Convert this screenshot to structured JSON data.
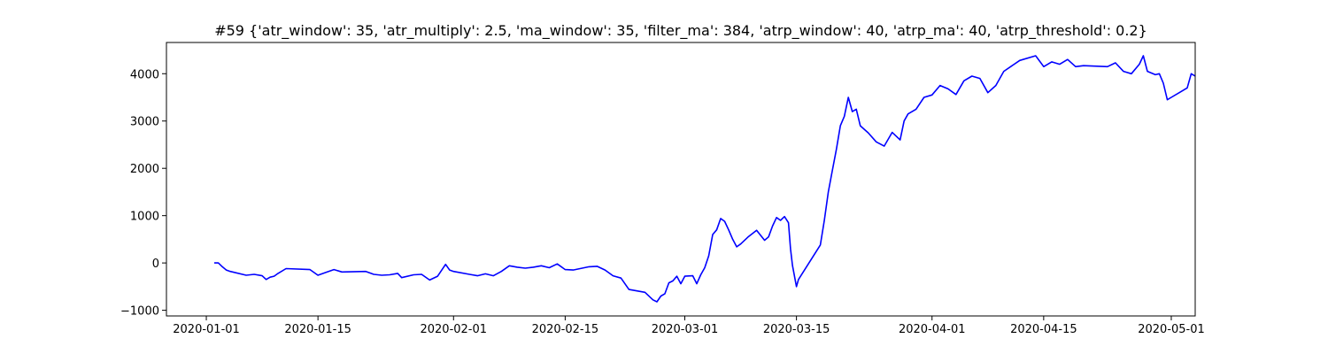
{
  "chart_data": {
    "type": "line",
    "title": "#59 {'atr_window': 35, 'atr_multiply': 2.5, 'ma_window': 35, 'filter_ma': 384, 'atrp_window': 40, 'atrp_ma': 40, 'atrp_threshold': 0.2}",
    "xlabel": "",
    "ylabel": "",
    "grid": false,
    "xlim": [
      "2019-12-27",
      "2020-05-04"
    ],
    "ylim": [
      -1120,
      4660
    ],
    "x_ticks": [
      "2020-01-01",
      "2020-01-15",
      "2020-02-01",
      "2020-02-15",
      "2020-03-01",
      "2020-03-15",
      "2020-04-01",
      "2020-04-15",
      "2020-05-01"
    ],
    "y_ticks": [
      -1000,
      0,
      1000,
      2000,
      3000,
      4000
    ],
    "y_tick_labels": [
      "−1000",
      "0",
      "1000",
      "2000",
      "3000",
      "4000"
    ],
    "series": [
      {
        "color": "#0000ff",
        "points": [
          [
            "2020-01-02",
            0
          ],
          [
            "2020-01-02 12:00",
            0
          ],
          [
            "2020-01-03",
            -80
          ],
          [
            "2020-01-03 12:00",
            -150
          ],
          [
            "2020-01-04",
            -180
          ],
          [
            "2020-01-06",
            -260
          ],
          [
            "2020-01-07",
            -240
          ],
          [
            "2020-01-08",
            -270
          ],
          [
            "2020-01-08 12:00",
            -350
          ],
          [
            "2020-01-09",
            -300
          ],
          [
            "2020-01-09 12:00",
            -280
          ],
          [
            "2020-01-10",
            -220
          ],
          [
            "2020-01-11",
            -120
          ],
          [
            "2020-01-14",
            -140
          ],
          [
            "2020-01-15",
            -260
          ],
          [
            "2020-01-16",
            -200
          ],
          [
            "2020-01-17",
            -140
          ],
          [
            "2020-01-18",
            -190
          ],
          [
            "2020-01-21",
            -180
          ],
          [
            "2020-01-22",
            -240
          ],
          [
            "2020-01-23",
            -260
          ],
          [
            "2020-01-24",
            -250
          ],
          [
            "2020-01-25",
            -220
          ],
          [
            "2020-01-25 12:00",
            -310
          ],
          [
            "2020-01-27",
            -250
          ],
          [
            "2020-01-28",
            -240
          ],
          [
            "2020-01-29",
            -360
          ],
          [
            "2020-01-30",
            -280
          ],
          [
            "2020-01-31",
            -30
          ],
          [
            "2020-01-31 12:00",
            -150
          ],
          [
            "2020-02-01",
            -180
          ],
          [
            "2020-02-03",
            -240
          ],
          [
            "2020-02-04",
            -270
          ],
          [
            "2020-02-05",
            -230
          ],
          [
            "2020-02-06",
            -270
          ],
          [
            "2020-02-07",
            -180
          ],
          [
            "2020-02-08",
            -60
          ],
          [
            "2020-02-09",
            -90
          ],
          [
            "2020-02-10",
            -110
          ],
          [
            "2020-02-11",
            -90
          ],
          [
            "2020-02-12",
            -60
          ],
          [
            "2020-02-13",
            -100
          ],
          [
            "2020-02-14",
            -20
          ],
          [
            "2020-02-15",
            -140
          ],
          [
            "2020-02-16",
            -150
          ],
          [
            "2020-02-18",
            -80
          ],
          [
            "2020-02-19",
            -70
          ],
          [
            "2020-02-20",
            -150
          ],
          [
            "2020-02-21",
            -270
          ],
          [
            "2020-02-22",
            -320
          ],
          [
            "2020-02-23",
            -560
          ],
          [
            "2020-02-25",
            -620
          ],
          [
            "2020-02-26",
            -780
          ],
          [
            "2020-02-26 12:00",
            -820
          ],
          [
            "2020-02-27",
            -700
          ],
          [
            "2020-02-27 12:00",
            -650
          ],
          [
            "2020-02-28",
            -420
          ],
          [
            "2020-02-28 12:00",
            -380
          ],
          [
            "2020-02-29",
            -280
          ],
          [
            "2020-02-29 12:00",
            -440
          ],
          [
            "2020-03-01",
            -280
          ],
          [
            "2020-03-02",
            -270
          ],
          [
            "2020-03-02 12:00",
            -440
          ],
          [
            "2020-03-03",
            -250
          ],
          [
            "2020-03-03 12:00",
            -100
          ],
          [
            "2020-03-04",
            150
          ],
          [
            "2020-03-04 12:00",
            600
          ],
          [
            "2020-03-05",
            700
          ],
          [
            "2020-03-05 12:00",
            940
          ],
          [
            "2020-03-06",
            880
          ],
          [
            "2020-03-06 12:00",
            700
          ],
          [
            "2020-03-07",
            500
          ],
          [
            "2020-03-07 12:00",
            340
          ],
          [
            "2020-03-08",
            400
          ],
          [
            "2020-03-09",
            560
          ],
          [
            "2020-03-10",
            690
          ],
          [
            "2020-03-11",
            480
          ],
          [
            "2020-03-11 12:00",
            550
          ],
          [
            "2020-03-12",
            780
          ],
          [
            "2020-03-12 12:00",
            960
          ],
          [
            "2020-03-13",
            900
          ],
          [
            "2020-03-13 12:00",
            980
          ],
          [
            "2020-03-14",
            850
          ],
          [
            "2020-03-14 06:00",
            300
          ],
          [
            "2020-03-14 12:00",
            -50
          ],
          [
            "2020-03-15",
            -500
          ],
          [
            "2020-03-15 06:00",
            -350
          ],
          [
            "2020-03-18",
            380
          ],
          [
            "2020-03-18 12:00",
            900
          ],
          [
            "2020-03-19",
            1500
          ],
          [
            "2020-03-19 12:00",
            1950
          ],
          [
            "2020-03-20",
            2400
          ],
          [
            "2020-03-20 12:00",
            2900
          ],
          [
            "2020-03-21",
            3100
          ],
          [
            "2020-03-21 12:00",
            3500
          ],
          [
            "2020-03-22",
            3200
          ],
          [
            "2020-03-22 12:00",
            3250
          ],
          [
            "2020-03-23",
            2900
          ],
          [
            "2020-03-24",
            2750
          ],
          [
            "2020-03-25",
            2560
          ],
          [
            "2020-03-26",
            2470
          ],
          [
            "2020-03-27",
            2760
          ],
          [
            "2020-03-28",
            2600
          ],
          [
            "2020-03-28 12:00",
            3000
          ],
          [
            "2020-03-29",
            3150
          ],
          [
            "2020-03-30",
            3250
          ],
          [
            "2020-03-31",
            3500
          ],
          [
            "2020-04-01",
            3550
          ],
          [
            "2020-04-02",
            3750
          ],
          [
            "2020-04-03",
            3680
          ],
          [
            "2020-04-04",
            3560
          ],
          [
            "2020-04-05",
            3850
          ],
          [
            "2020-04-06",
            3950
          ],
          [
            "2020-04-07",
            3900
          ],
          [
            "2020-04-08",
            3600
          ],
          [
            "2020-04-09",
            3750
          ],
          [
            "2020-04-10",
            4050
          ],
          [
            "2020-04-12",
            4280
          ],
          [
            "2020-04-14",
            4380
          ],
          [
            "2020-04-15",
            4150
          ],
          [
            "2020-04-16",
            4250
          ],
          [
            "2020-04-17",
            4200
          ],
          [
            "2020-04-18",
            4300
          ],
          [
            "2020-04-19",
            4150
          ],
          [
            "2020-04-20",
            4170
          ],
          [
            "2020-04-23",
            4150
          ],
          [
            "2020-04-24",
            4230
          ],
          [
            "2020-04-25",
            4050
          ],
          [
            "2020-04-26",
            4000
          ],
          [
            "2020-04-27",
            4200
          ],
          [
            "2020-04-27 12:00",
            4380
          ],
          [
            "2020-04-28",
            4050
          ],
          [
            "2020-04-29",
            3980
          ],
          [
            "2020-04-29 12:00",
            4000
          ],
          [
            "2020-04-30",
            3800
          ],
          [
            "2020-04-30 12:00",
            3450
          ],
          [
            "2020-05-01",
            3500
          ],
          [
            "2020-05-02",
            3600
          ],
          [
            "2020-05-03",
            3700
          ],
          [
            "2020-05-03 12:00",
            4000
          ],
          [
            "2020-05-04",
            3950
          ]
        ]
      }
    ]
  }
}
